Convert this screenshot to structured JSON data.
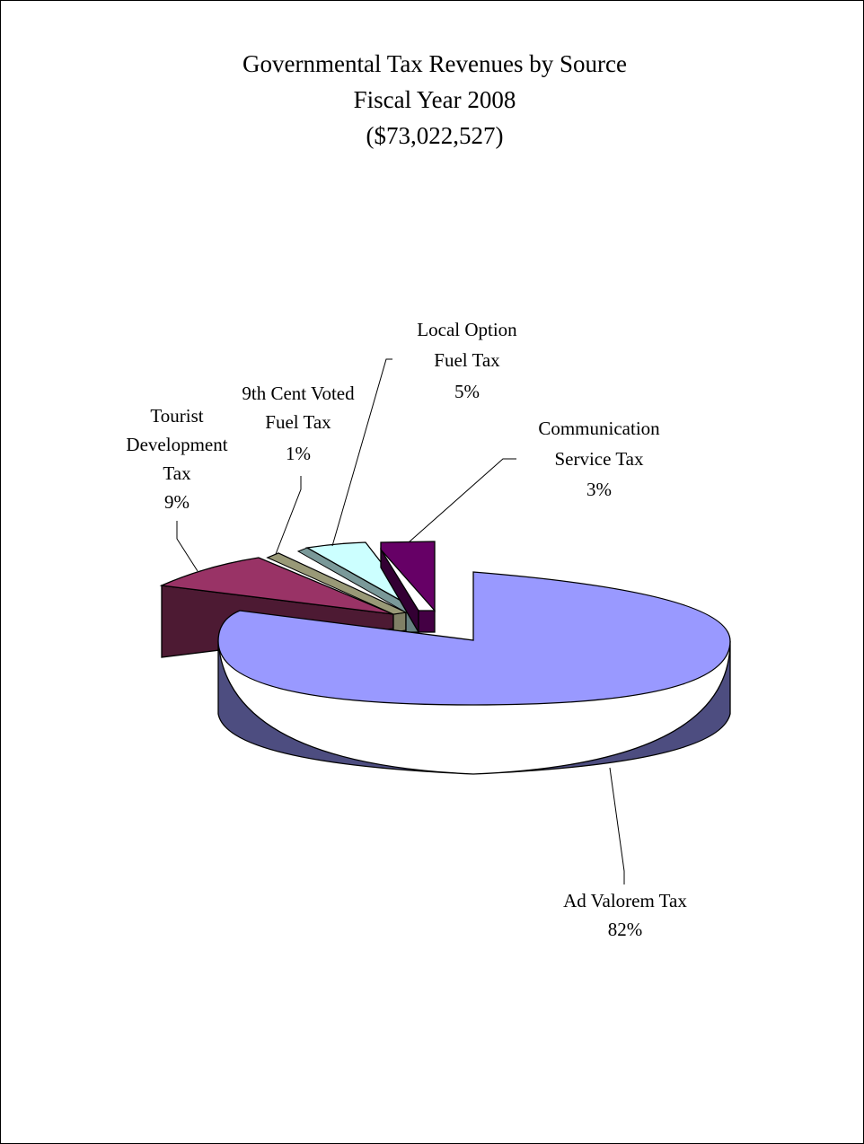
{
  "chart_data": {
    "type": "pie",
    "title_lines": [
      "Governmental Tax Revenues by Source",
      "Fiscal Year 2008",
      "($73,022,527)"
    ],
    "slices": [
      {
        "key": "ad_valorem",
        "label_lines": [
          "Ad Valorem Tax"
        ],
        "percent_label": "82%",
        "value": 82,
        "color": "#9999FF"
      },
      {
        "key": "tourist",
        "label_lines": [
          "Tourist",
          "Development",
          "Tax"
        ],
        "percent_label": "9%",
        "value": 9,
        "color": "#993366"
      },
      {
        "key": "ninth_cent",
        "label_lines": [
          "9th Cent Voted",
          "Fuel Tax"
        ],
        "percent_label": "1%",
        "value": 1,
        "color": "#FFFFCC"
      },
      {
        "key": "local_option",
        "label_lines": [
          "Local Option",
          "Fuel Tax"
        ],
        "percent_label": "5%",
        "value": 5,
        "color": "#CCFFFF"
      },
      {
        "key": "communication",
        "label_lines": [
          "Communication",
          "Service Tax"
        ],
        "percent_label": "3%",
        "value": 3,
        "color": "#660066"
      }
    ],
    "style": "3d-exploded"
  }
}
